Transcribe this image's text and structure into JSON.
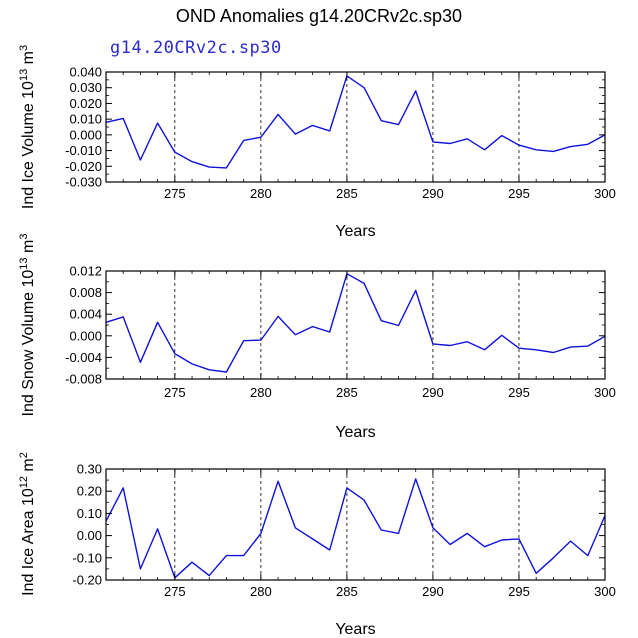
{
  "title": "OND Anomalies g14.20CRv2c.sp30",
  "subtitle": "g14.20CRv2c.sp30",
  "colors": {
    "line": "#1111dd",
    "axis": "#000000",
    "grid": "#000000"
  },
  "chart_data": [
    {
      "type": "line",
      "ylabel_main": "Ind Ice Volume 10",
      "ylabel_exp": "13",
      "ylabel_unit": " m",
      "ylabel_unit_exp": "3",
      "xlabel": "Years",
      "xlim": [
        271,
        300
      ],
      "ylim": [
        -0.03,
        0.04
      ],
      "xticks": [
        275,
        280,
        285,
        290,
        295,
        300
      ],
      "xtick_labels": [
        "275",
        "280",
        "285",
        "290",
        "295",
        "300"
      ],
      "yticks": [
        0.04,
        0.03,
        0.02,
        0.01,
        0.0,
        -0.01,
        -0.02,
        -0.03
      ],
      "ytick_labels": [
        "0.040",
        "0.030",
        "0.020",
        "0.010",
        "0.000",
        "-0.010",
        "-0.020",
        "-0.030"
      ],
      "vgrid": [
        275,
        280,
        285,
        290,
        295
      ],
      "x": [
        271,
        272,
        273,
        274,
        275,
        276,
        277,
        278,
        279,
        280,
        281,
        282,
        283,
        284,
        285,
        286,
        287,
        288,
        289,
        290,
        291,
        292,
        293,
        294,
        295,
        296,
        297,
        298,
        299,
        300
      ],
      "values": [
        0.008,
        0.0105,
        -0.016,
        0.0075,
        -0.011,
        -0.017,
        -0.0205,
        -0.021,
        -0.0035,
        -0.0015,
        0.013,
        0.0005,
        0.006,
        0.0025,
        0.0375,
        0.03,
        0.009,
        0.0065,
        0.028,
        -0.0045,
        -0.0055,
        -0.0025,
        -0.0095,
        -0.0005,
        -0.0065,
        -0.0095,
        -0.0105,
        -0.0075,
        -0.006,
        0.0
      ]
    },
    {
      "type": "line",
      "ylabel_main": "Ind Snow Volume 10",
      "ylabel_exp": "13",
      "ylabel_unit": " m",
      "ylabel_unit_exp": "3",
      "xlabel": "Years",
      "xlim": [
        271,
        300
      ],
      "ylim": [
        -0.008,
        0.012
      ],
      "xticks": [
        275,
        280,
        285,
        290,
        295,
        300
      ],
      "xtick_labels": [
        "275",
        "280",
        "285",
        "290",
        "295",
        "300"
      ],
      "yticks": [
        0.012,
        0.008,
        0.004,
        0.0,
        -0.004,
        -0.008
      ],
      "ytick_labels": [
        "0.012",
        "0.008",
        "0.004",
        "0.000",
        "-0.004",
        "-0.008"
      ],
      "vgrid": [
        275,
        280,
        285,
        290,
        295
      ],
      "x": [
        271,
        272,
        273,
        274,
        275,
        276,
        277,
        278,
        279,
        280,
        281,
        282,
        283,
        284,
        285,
        286,
        287,
        288,
        289,
        290,
        291,
        292,
        293,
        294,
        295,
        296,
        297,
        298,
        299,
        300
      ],
      "values": [
        0.0025,
        0.0035,
        -0.0049,
        0.0025,
        -0.0033,
        -0.0052,
        -0.0063,
        -0.0067,
        -0.0009,
        -0.0008,
        0.0036,
        0.0002,
        0.0017,
        0.0007,
        0.0115,
        0.0097,
        0.0028,
        0.0019,
        0.0084,
        -0.0015,
        -0.0018,
        -0.0011,
        -0.0026,
        0.0001,
        -0.0023,
        -0.0026,
        -0.0031,
        -0.0021,
        -0.0019,
        -0.0001
      ]
    },
    {
      "type": "line",
      "ylabel_main": "Ind Ice Area 10",
      "ylabel_exp": "12",
      "ylabel_unit": " m",
      "ylabel_unit_exp": "2",
      "xlabel": "Years",
      "xlim": [
        271,
        300
      ],
      "ylim": [
        -0.2,
        0.3
      ],
      "xticks": [
        275,
        280,
        285,
        290,
        295,
        300
      ],
      "xtick_labels": [
        "275",
        "280",
        "285",
        "290",
        "295",
        "300"
      ],
      "yticks": [
        0.3,
        0.2,
        0.1,
        0.0,
        -0.1,
        -0.2
      ],
      "ytick_labels": [
        "0.30",
        "0.20",
        "0.10",
        "0.00",
        "-0.10",
        "-0.20"
      ],
      "vgrid": [
        275,
        280,
        285,
        290,
        295
      ],
      "x": [
        271,
        272,
        273,
        274,
        275,
        276,
        277,
        278,
        279,
        280,
        281,
        282,
        283,
        284,
        285,
        286,
        287,
        288,
        289,
        290,
        291,
        292,
        293,
        294,
        295,
        296,
        297,
        298,
        299,
        300
      ],
      "values": [
        0.065,
        0.215,
        -0.15,
        0.03,
        -0.19,
        -0.12,
        -0.18,
        -0.09,
        -0.09,
        0.01,
        0.245,
        0.035,
        -0.015,
        -0.065,
        0.215,
        0.16,
        0.025,
        0.01,
        0.255,
        0.035,
        -0.04,
        0.01,
        -0.05,
        -0.02,
        -0.015,
        -0.17,
        -0.1,
        -0.025,
        -0.09,
        0.09
      ]
    }
  ]
}
